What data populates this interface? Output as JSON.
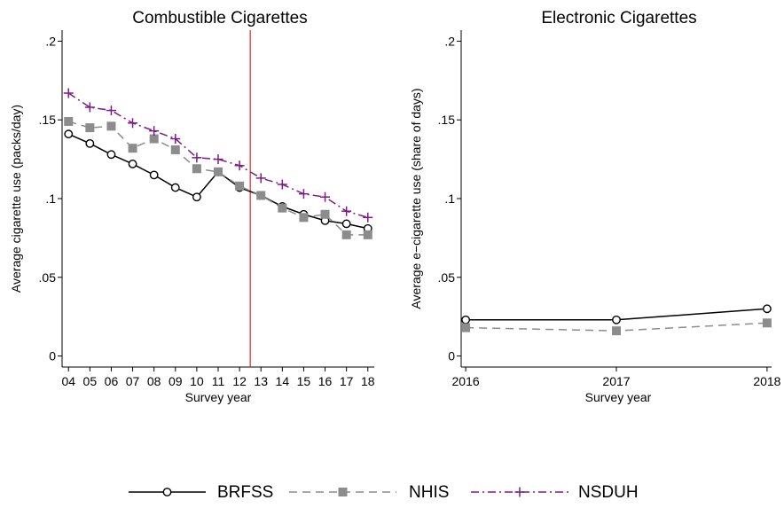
{
  "chart_data": [
    {
      "type": "line",
      "title": "Combustible Cigarettes",
      "xlabel": "Survey year",
      "ylabel": "Average cigarette use (packs/day)",
      "x_ticklabels": [
        "04",
        "05",
        "06",
        "07",
        "08",
        "09",
        "10",
        "11",
        "12",
        "13",
        "14",
        "15",
        "16",
        "17",
        "18"
      ],
      "x": [
        2004,
        2005,
        2006,
        2007,
        2008,
        2009,
        2010,
        2011,
        2012,
        2013,
        2014,
        2015,
        2016,
        2017,
        2018
      ],
      "xlim": [
        2003.7,
        2018.3
      ],
      "ylim": [
        -0.007,
        0.207
      ],
      "y_ticks": [
        0,
        0.05,
        0.1,
        0.15,
        0.2
      ],
      "y_ticklabels": [
        "0",
        ".05",
        ".1",
        ".15",
        ".2"
      ],
      "reference_line_x": 2012.5,
      "reference_line_color": "#e0261c",
      "series": [
        {
          "name": "BRFSS",
          "values": [
            0.141,
            0.135,
            0.128,
            0.122,
            0.115,
            0.107,
            0.101,
            0.117,
            0.107,
            0.102,
            0.095,
            0.09,
            0.086,
            0.084,
            0.081
          ]
        },
        {
          "name": "NHIS",
          "values": [
            0.149,
            0.145,
            0.146,
            0.132,
            0.138,
            0.131,
            0.119,
            0.117,
            0.108,
            0.102,
            0.094,
            0.088,
            0.09,
            0.077,
            0.077
          ]
        },
        {
          "name": "NSDUH",
          "values": [
            0.167,
            0.158,
            0.156,
            0.148,
            0.143,
            0.138,
            0.126,
            0.125,
            0.121,
            0.113,
            0.109,
            0.103,
            0.101,
            0.092,
            0.088
          ]
        }
      ]
    },
    {
      "type": "line",
      "title": "Electronic Cigarettes",
      "xlabel": "Survey year",
      "ylabel": "Average e−cigarette use (share of days)",
      "x_ticklabels": [
        "2016",
        "2017",
        "2018"
      ],
      "x": [
        2016,
        2017,
        2018
      ],
      "xlim": [
        2015.97,
        2018.03
      ],
      "ylim": [
        -0.007,
        0.207
      ],
      "y_ticks": [
        0,
        0.05,
        0.1,
        0.15,
        0.2
      ],
      "y_ticklabels": [
        "0",
        ".05",
        ".1",
        ".15",
        ".2"
      ],
      "series": [
        {
          "name": "BRFSS",
          "values": [
            0.023,
            0.023,
            0.03
          ]
        },
        {
          "name": "NHIS",
          "values": [
            0.018,
            0.016,
            0.021
          ]
        }
      ]
    }
  ],
  "legend": {
    "placement": "bottom",
    "entries": [
      "BRFSS",
      "NHIS",
      "NSDUH"
    ]
  },
  "series_styles": {
    "BRFSS": {
      "color": "#000000",
      "marker": "hollow-circle-icon",
      "dash": "solid"
    },
    "NHIS": {
      "color": "#8c8c8c",
      "marker": "filled-square-icon",
      "dash": "long-dash"
    },
    "NSDUH": {
      "color": "#7a1d83",
      "marker": "plus-icon",
      "dash": "dash-dot"
    }
  }
}
